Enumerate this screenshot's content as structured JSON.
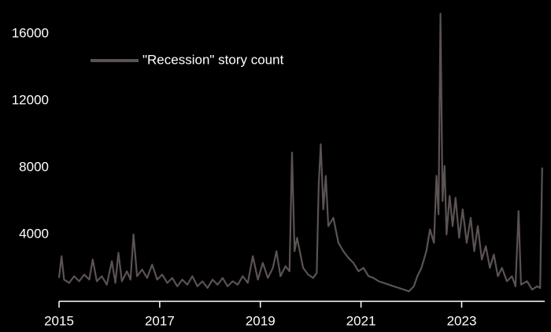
{
  "chart_data": {
    "type": "line",
    "x": [
      2015.0,
      2015.05,
      2015.1,
      2015.2,
      2015.3,
      2015.4,
      2015.5,
      2015.6,
      2015.67,
      2015.75,
      2015.85,
      2015.95,
      2016.0,
      2016.05,
      2016.12,
      2016.18,
      2016.25,
      2016.35,
      2016.42,
      2016.48,
      2016.55,
      2016.65,
      2016.75,
      2016.85,
      2016.95,
      2017.05,
      2017.15,
      2017.25,
      2017.35,
      2017.45,
      2017.55,
      2017.65,
      2017.75,
      2017.85,
      2017.95,
      2018.05,
      2018.15,
      2018.25,
      2018.35,
      2018.45,
      2018.55,
      2018.65,
      2018.75,
      2018.85,
      2018.95,
      2019.05,
      2019.15,
      2019.25,
      2019.32,
      2019.4,
      2019.5,
      2019.58,
      2019.63,
      2019.68,
      2019.73,
      2019.85,
      2019.95,
      2020.05,
      2020.12,
      2020.16,
      2020.2,
      2020.25,
      2020.3,
      2020.35,
      2020.45,
      2020.55,
      2020.65,
      2020.75,
      2020.85,
      2020.95,
      2021.05,
      2021.15,
      2021.25,
      2021.35,
      2021.45,
      2021.55,
      2021.65,
      2021.75,
      2021.85,
      2021.95,
      2022.05,
      2022.12,
      2022.2,
      2022.3,
      2022.37,
      2022.45,
      2022.5,
      2022.54,
      2022.58,
      2022.62,
      2022.66,
      2022.7,
      2022.76,
      2022.82,
      2022.88,
      2022.95,
      2023.02,
      2023.1,
      2023.18,
      2023.25,
      2023.32,
      2023.4,
      2023.48,
      2023.56,
      2023.64,
      2023.72,
      2023.8,
      2023.9,
      2024.0,
      2024.07,
      2024.13,
      2024.18,
      2024.3,
      2024.4,
      2024.5,
      2024.56,
      2024.6
    ],
    "series": [
      {
        "name": "\"Recession\" story count",
        "color": "#5b5252",
        "values": [
          1400,
          2700,
          1300,
          1100,
          1500,
          1200,
          1600,
          1300,
          2500,
          1200,
          1500,
          1000,
          1700,
          2400,
          1100,
          2900,
          1200,
          1800,
          1300,
          4000,
          1500,
          1900,
          1400,
          2200,
          1300,
          1600,
          1100,
          1400,
          900,
          1300,
          1000,
          1500,
          900,
          1200,
          800,
          1300,
          1000,
          1400,
          900,
          1200,
          1000,
          1500,
          1100,
          2700,
          1300,
          2300,
          1400,
          2000,
          3000,
          1500,
          2100,
          1800,
          8900,
          3000,
          3800,
          2000,
          1600,
          1400,
          1700,
          7000,
          9400,
          5500,
          7500,
          4500,
          5000,
          3500,
          3000,
          2600,
          2300,
          1800,
          2000,
          1500,
          1400,
          1200,
          1100,
          1000,
          900,
          800,
          700,
          600,
          900,
          1500,
          2000,
          3000,
          4300,
          3500,
          7500,
          5200,
          17200,
          6000,
          8100,
          4000,
          6300,
          4500,
          6200,
          3800,
          5500,
          3500,
          5000,
          3000,
          4500,
          2500,
          3300,
          2000,
          2800,
          1500,
          2000,
          1200,
          1500,
          900,
          5400,
          1000,
          1200,
          700,
          900,
          800,
          8000
        ]
      }
    ],
    "xlim": [
      2015,
      2024.65
    ],
    "xticks": [
      2015,
      2017,
      2019,
      2021,
      2023
    ],
    "ylim": [
      0,
      18000
    ],
    "yticks": [
      4000,
      8000,
      12000,
      16000
    ]
  }
}
